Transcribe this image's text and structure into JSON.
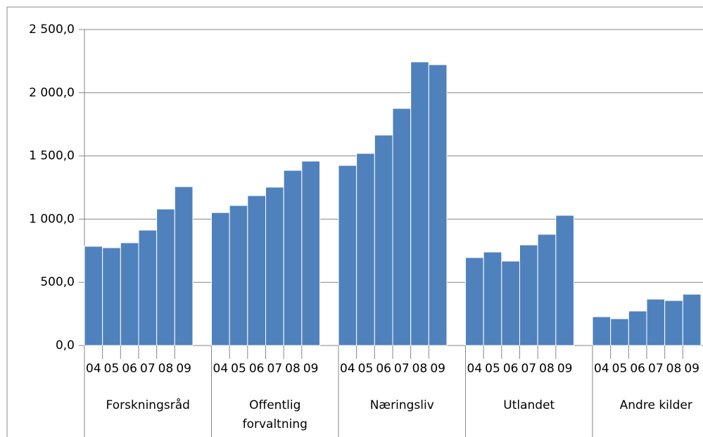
{
  "chart_data": {
    "type": "bar",
    "color": "#4f81bd",
    "grid": true,
    "ylim": [
      0,
      2500
    ],
    "yticks": [
      {
        "value": 0,
        "label": "0,0"
      },
      {
        "value": 500,
        "label": "500,0"
      },
      {
        "value": 1000,
        "label": "1 000,0"
      },
      {
        "value": 1500,
        "label": "1 500,0"
      },
      {
        "value": 2000,
        "label": "2 000,0"
      },
      {
        "value": 2500,
        "label": "2 500,0"
      }
    ],
    "groups": [
      "Forskningsråd",
      "Offentlig forvaltning",
      "Næringsliv",
      "Utlandet",
      "Andre kilder"
    ],
    "categories": [
      "04",
      "05",
      "06",
      "07",
      "08",
      "09",
      "04",
      "05",
      "06",
      "07",
      "08",
      "09",
      "04",
      "05",
      "06",
      "07",
      "08",
      "09",
      "04",
      "05",
      "06",
      "07",
      "08",
      "09",
      "04",
      "05",
      "06",
      "07",
      "08",
      "09"
    ],
    "values": [
      785,
      774,
      813,
      913,
      1080,
      1257,
      1052,
      1108,
      1186,
      1253,
      1386,
      1459,
      1425,
      1520,
      1665,
      1876,
      2244,
      2222,
      696,
      740,
      668,
      796,
      880,
      1030,
      228,
      212,
      273,
      367,
      356,
      406
    ]
  }
}
